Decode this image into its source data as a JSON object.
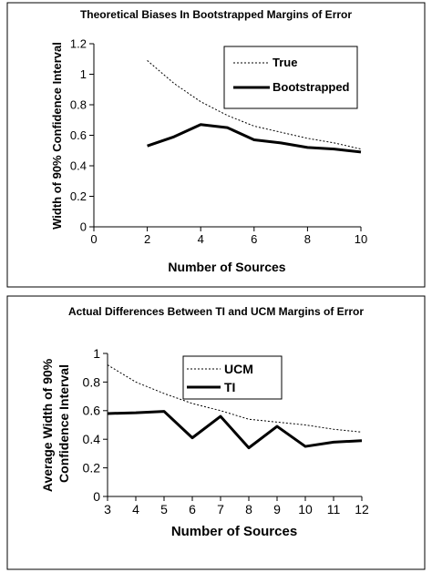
{
  "chart_data": [
    {
      "type": "line",
      "title": "Theoretical Biases In Bootstrapped Margins of Error",
      "xlabel": "Number of Sources",
      "ylabel": "Width of 90% Confidence Interval",
      "xlim": [
        0,
        10
      ],
      "ylim": [
        0,
        1.2
      ],
      "xticks": [
        0,
        2,
        4,
        6,
        8,
        10
      ],
      "yticks": [
        0,
        0.2,
        0.4,
        0.6,
        0.8,
        1,
        1.2
      ],
      "xtick_labels": [
        "0",
        "2",
        "4",
        "6",
        "8",
        "10"
      ],
      "ytick_labels": [
        "0",
        "0.2",
        "0.4",
        "0.6",
        "0.8",
        "1",
        "1.2"
      ],
      "x": [
        2,
        3,
        4,
        5,
        6,
        7,
        8,
        9,
        10
      ],
      "series": [
        {
          "name": "True",
          "values": [
            1.09,
            0.94,
            0.82,
            0.73,
            0.66,
            0.62,
            0.58,
            0.55,
            0.51
          ],
          "style": "dotted",
          "color": "#000000"
        },
        {
          "name": "Bootstrapped",
          "values": [
            0.53,
            0.59,
            0.67,
            0.65,
            0.57,
            0.55,
            0.52,
            0.51,
            0.49
          ],
          "style": "solid",
          "color": "#000000"
        }
      ],
      "legend": "top-right",
      "grid": false
    },
    {
      "type": "line",
      "title": "Actual Differences Between TI and UCM Margins of Error",
      "xlabel": "Number of Sources",
      "ylabel": "Average Width of 90% Confidence Interval",
      "xlim": [
        3,
        12
      ],
      "ylim": [
        0,
        1
      ],
      "xticks": [
        3,
        4,
        5,
        6,
        7,
        8,
        9,
        10,
        11,
        12
      ],
      "yticks": [
        0,
        0.2,
        0.4,
        0.6,
        0.8,
        1
      ],
      "xtick_labels": [
        "3",
        "4",
        "5",
        "6",
        "7",
        "8",
        "9",
        "10",
        "11",
        "12"
      ],
      "ytick_labels": [
        "0",
        "0.2",
        "0.4",
        "0.6",
        "0.8",
        "1"
      ],
      "x": [
        3,
        4,
        5,
        6,
        7,
        8,
        9,
        10,
        11,
        12
      ],
      "series": [
        {
          "name": "UCM",
          "values": [
            0.92,
            0.8,
            0.72,
            0.65,
            0.6,
            0.54,
            0.52,
            0.5,
            0.47,
            0.45
          ],
          "style": "dotted",
          "color": "#000000"
        },
        {
          "name": "TI",
          "values": [
            0.58,
            0.585,
            0.595,
            0.41,
            0.56,
            0.34,
            0.49,
            0.35,
            0.38,
            0.39
          ],
          "style": "solid",
          "color": "#000000"
        }
      ],
      "legend": "top-right",
      "grid": false
    }
  ]
}
